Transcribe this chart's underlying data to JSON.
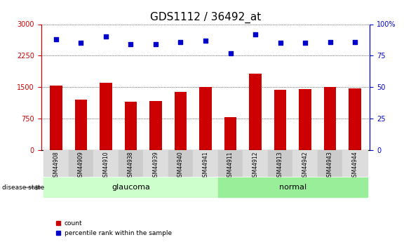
{
  "title": "GDS1112 / 36492_at",
  "samples": [
    "GSM44908",
    "GSM44909",
    "GSM44910",
    "GSM44938",
    "GSM44939",
    "GSM44940",
    "GSM44941",
    "GSM44911",
    "GSM44912",
    "GSM44913",
    "GSM44942",
    "GSM44943",
    "GSM44944"
  ],
  "counts": [
    1530,
    1200,
    1600,
    1150,
    1170,
    1380,
    1510,
    780,
    1820,
    1430,
    1460,
    1500,
    1470
  ],
  "percentiles": [
    88,
    85,
    90,
    84,
    84,
    86,
    87,
    77,
    92,
    85,
    85,
    86,
    86
  ],
  "groups": [
    "glaucoma",
    "glaucoma",
    "glaucoma",
    "glaucoma",
    "glaucoma",
    "glaucoma",
    "glaucoma",
    "normal",
    "normal",
    "normal",
    "normal",
    "normal",
    "normal"
  ],
  "ylim_left": [
    0,
    3000
  ],
  "ylim_right": [
    0,
    100
  ],
  "yticks_left": [
    0,
    750,
    1500,
    2250,
    3000
  ],
  "yticks_right": [
    0,
    25,
    50,
    75,
    100
  ],
  "bar_color": "#cc0000",
  "dot_color": "#0000cc",
  "glaucoma_color": "#ccffcc",
  "normal_color": "#99ee99",
  "grid_color": "#000000",
  "title_fontsize": 11,
  "tick_fontsize": 7,
  "label_fontsize": 8,
  "bar_width": 0.5
}
